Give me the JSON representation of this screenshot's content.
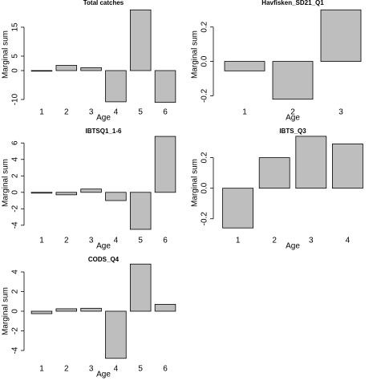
{
  "chart_data": [
    {
      "type": "bar",
      "title": "Total catches",
      "x_label": "Age",
      "y_label": "Marginal sum",
      "color": "#bebebe",
      "categories": [
        "1",
        "2",
        "3",
        "4",
        "5",
        "6"
      ],
      "values": [
        -0.2,
        1.8,
        1.0,
        -10.8,
        21,
        -11
      ],
      "ylim": [
        -11.1,
        22.2
      ],
      "yticks": [
        -10,
        0,
        5,
        15
      ]
    },
    {
      "type": "bar",
      "title": "Havfisken_SD21_Q1",
      "x_label": "Age",
      "y_label": "Marginal sum",
      "color": "#bebebe",
      "categories": [
        "1",
        "2",
        "3"
      ],
      "values": [
        -0.055,
        -0.22,
        0.3
      ],
      "ylim": [
        -0.24,
        0.32
      ],
      "yticks": [
        -0.2,
        {
          "value": 0,
          "label": "0.0"
        },
        0.2
      ]
    },
    {
      "type": "bar",
      "title": "IBTSQ1_1-6",
      "x_label": "Age",
      "y_label": "Marginal sum",
      "color": "#bebebe",
      "categories": [
        "1",
        "2",
        "3",
        "4",
        "5",
        "6"
      ],
      "values": [
        -0.1,
        -0.3,
        0.4,
        -1.0,
        -4.5,
        6.8
      ],
      "ylim": [
        -4.7,
        7
      ],
      "yticks": [
        -4,
        -2,
        0,
        2,
        4,
        6
      ]
    },
    {
      "type": "bar",
      "title": "IBTS_Q3",
      "x_label": "Age",
      "y_label": "Marginal sum",
      "color": "#bebebe",
      "categories": [
        "1",
        "2",
        "3",
        "4"
      ],
      "values": [
        -0.26,
        0.2,
        0.34,
        0.29
      ],
      "ylim": [
        -0.28,
        0.35
      ],
      "yticks": [
        -0.2,
        {
          "value": 0,
          "label": "0.0"
        },
        0.2
      ]
    },
    {
      "type": "bar",
      "title": "CODS_Q4",
      "x_label": "Age",
      "y_label": "Marginal sum",
      "color": "#bebebe",
      "categories": [
        "1",
        "2",
        "3",
        "4",
        "5",
        "6"
      ],
      "values": [
        -0.25,
        0.25,
        0.3,
        -4.8,
        4.8,
        0.7
      ],
      "ylim": [
        -4.9,
        4.9
      ],
      "yticks": [
        -4,
        -2,
        0,
        2,
        4
      ]
    }
  ]
}
